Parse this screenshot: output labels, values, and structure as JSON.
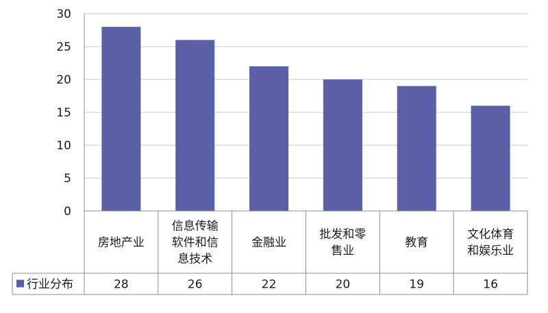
{
  "chart_data": {
    "type": "bar",
    "categories": [
      "房地产业",
      "信息传输软件和信息技术",
      "金融业",
      "批发和零售业",
      "教育",
      "文化体育和娱乐业"
    ],
    "category_lines": [
      [
        "房地产业"
      ],
      [
        "信息传输",
        "软件和信",
        "息技术"
      ],
      [
        "金融业"
      ],
      [
        "批发和零",
        "售业"
      ],
      [
        "教育"
      ],
      [
        "文化体育",
        "和娱乐业"
      ]
    ],
    "series": [
      {
        "name": "行业分布",
        "values": [
          28,
          26,
          22,
          20,
          19,
          16
        ]
      }
    ],
    "value_labels": [
      "28",
      "26",
      "22",
      "20",
      "19",
      "16"
    ],
    "ylim": [
      0,
      30
    ],
    "yticks": [
      "0",
      "5",
      "10",
      "15",
      "20",
      "25",
      "30"
    ],
    "grid": true,
    "legend": "data-table-left",
    "colors": {
      "bar": "#5a5fa6",
      "grid": "#c8c8c8",
      "axis": "#8c8c8c"
    }
  }
}
